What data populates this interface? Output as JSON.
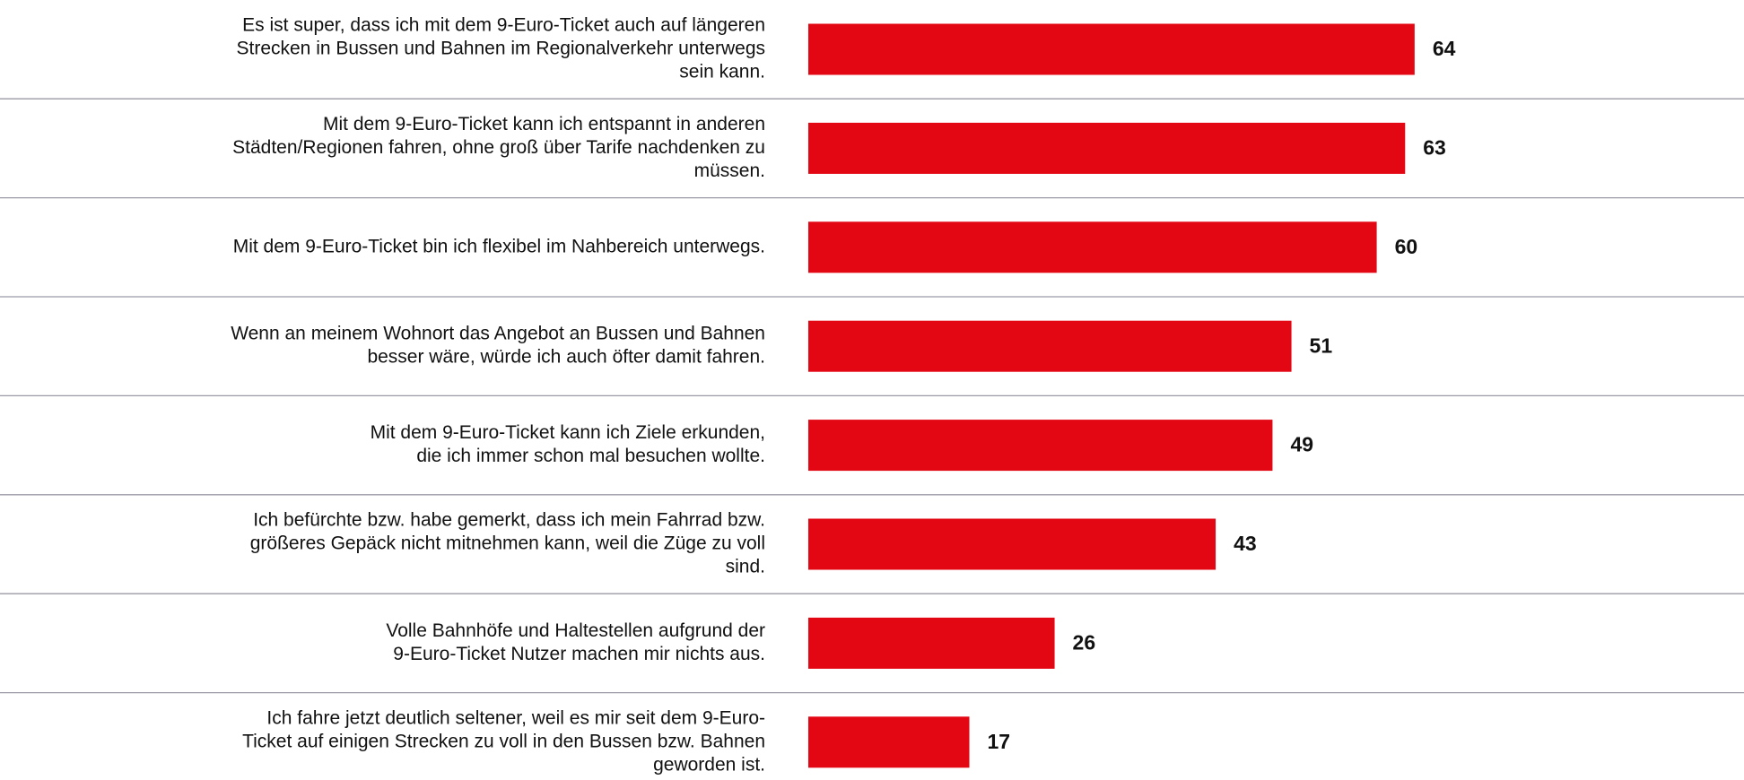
{
  "chart_data": {
    "type": "barh",
    "categories": [
      [
        "Es ist super, dass ich mit dem 9-Euro-Ticket auch auf längeren",
        "Strecken in Bussen und Bahnen im Regionalverkehr unterwegs",
        "sein kann."
      ],
      [
        "Mit dem 9-Euro-Ticket kann ich entspannt in anderen",
        "Städten/Regionen fahren, ohne groß über Tarife nachdenken zu",
        "müssen."
      ],
      [
        "Mit dem 9-Euro-Ticket bin ich flexibel im Nahbereich unterwegs."
      ],
      [
        "Wenn an meinem Wohnort das Angebot an Bussen und Bahnen",
        "besser wäre, würde ich auch öfter damit fahren."
      ],
      [
        "Mit dem 9-Euro-Ticket kann ich Ziele erkunden,",
        "die ich immer schon mal besuchen wollte."
      ],
      [
        "Ich befürchte bzw. habe gemerkt, dass ich mein Fahrrad bzw.",
        "größeres Gepäck nicht mitnehmen kann, weil die Züge zu voll",
        "sind."
      ],
      [
        "Volle Bahnhöfe und Haltestellen aufgrund der",
        "9-Euro-Ticket Nutzer machen mir nichts aus."
      ],
      [
        "Ich fahre jetzt deutlich seltener, weil es mir seit dem 9-Euro-",
        "Ticket auf einigen Strecken zu voll in den Bussen bzw. Bahnen",
        "geworden ist."
      ]
    ],
    "values": [
      64,
      63,
      60,
      51,
      49,
      43,
      26,
      17
    ],
    "color": "#e30613",
    "xlim": [
      0,
      100
    ]
  }
}
